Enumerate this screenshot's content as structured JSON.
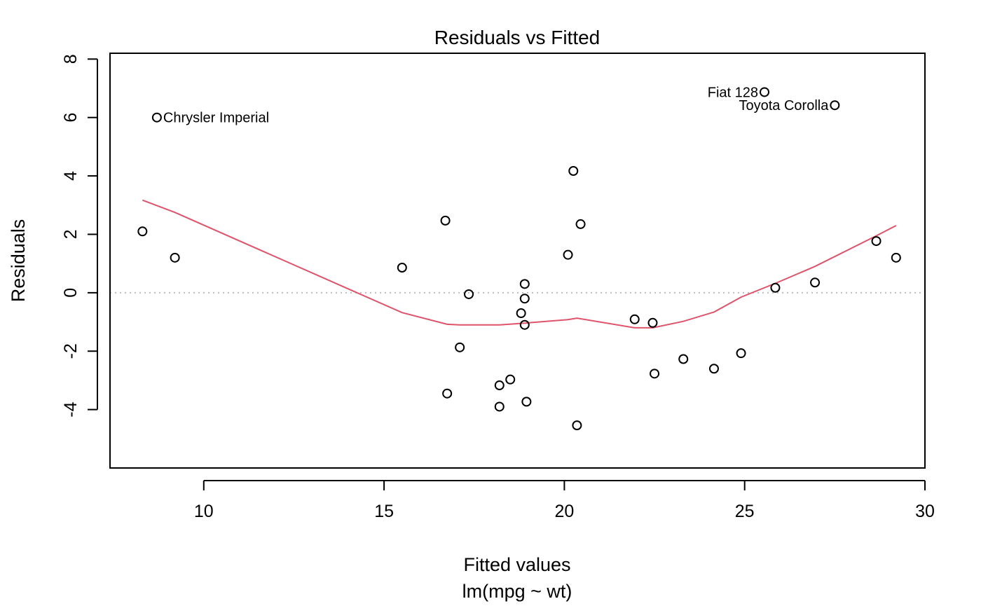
{
  "chart_data": {
    "type": "scatter",
    "title": "Residuals vs Fitted",
    "xlabel": "Fitted values",
    "subtitle": "lm(mpg ~ wt)",
    "ylabel": "Residuals",
    "xlim": [
      7.4,
      30.0
    ],
    "ylim": [
      -6.0,
      8.2
    ],
    "x_ticks": [
      10,
      15,
      20,
      25,
      30
    ],
    "y_ticks": [
      -4,
      -2,
      0,
      2,
      4,
      6,
      8
    ],
    "x_tick_labels": [
      "10",
      "15",
      "20",
      "25",
      "30"
    ],
    "y_tick_labels": [
      "-4",
      "-2",
      "0",
      "2",
      "4",
      "6",
      "8"
    ],
    "reference_line": {
      "y": 0,
      "style": "dotted",
      "color": "#bdbdbd"
    },
    "points": [
      {
        "x": 8.3,
        "y": 2.1
      },
      {
        "x": 8.7,
        "y": 6.0,
        "label": "Chrysler Imperial",
        "label_side": "right"
      },
      {
        "x": 9.2,
        "y": 1.2
      },
      {
        "x": 15.5,
        "y": 0.86
      },
      {
        "x": 16.7,
        "y": 2.47
      },
      {
        "x": 16.75,
        "y": -3.45
      },
      {
        "x": 17.1,
        "y": -1.87
      },
      {
        "x": 17.35,
        "y": -0.05
      },
      {
        "x": 18.2,
        "y": -3.17
      },
      {
        "x": 18.2,
        "y": -3.9
      },
      {
        "x": 18.5,
        "y": -2.97
      },
      {
        "x": 18.8,
        "y": -0.7
      },
      {
        "x": 18.9,
        "y": 0.3
      },
      {
        "x": 18.9,
        "y": -0.2
      },
      {
        "x": 18.9,
        "y": -1.1
      },
      {
        "x": 18.95,
        "y": -3.73
      },
      {
        "x": 20.1,
        "y": 1.3
      },
      {
        "x": 20.25,
        "y": 4.17
      },
      {
        "x": 20.35,
        "y": -4.54
      },
      {
        "x": 20.45,
        "y": 2.35
      },
      {
        "x": 21.95,
        "y": -0.91
      },
      {
        "x": 22.45,
        "y": -1.03
      },
      {
        "x": 22.5,
        "y": -2.77
      },
      {
        "x": 23.3,
        "y": -2.27
      },
      {
        "x": 24.15,
        "y": -2.6
      },
      {
        "x": 24.9,
        "y": -2.07
      },
      {
        "x": 25.55,
        "y": 6.87,
        "label": "Fiat 128",
        "label_side": "left"
      },
      {
        "x": 25.85,
        "y": 0.17
      },
      {
        "x": 26.95,
        "y": 0.35
      },
      {
        "x": 27.5,
        "y": 6.42,
        "label": "Toyota Corolla",
        "label_side": "left"
      },
      {
        "x": 28.65,
        "y": 1.77
      },
      {
        "x": 29.2,
        "y": 1.2
      }
    ],
    "smooth_line": {
      "color": "#df536b",
      "x": [
        8.3,
        9.2,
        15.5,
        16.75,
        17.1,
        18.2,
        18.9,
        20.1,
        20.35,
        21.95,
        22.45,
        23.3,
        24.15,
        24.9,
        25.85,
        26.95,
        28.65,
        29.2
      ],
      "y": [
        3.17,
        2.75,
        -0.68,
        -1.08,
        -1.1,
        -1.1,
        -1.04,
        -0.92,
        -0.87,
        -1.2,
        -1.2,
        -0.98,
        -0.66,
        -0.15,
        0.32,
        0.9,
        1.95,
        2.3
      ]
    }
  }
}
